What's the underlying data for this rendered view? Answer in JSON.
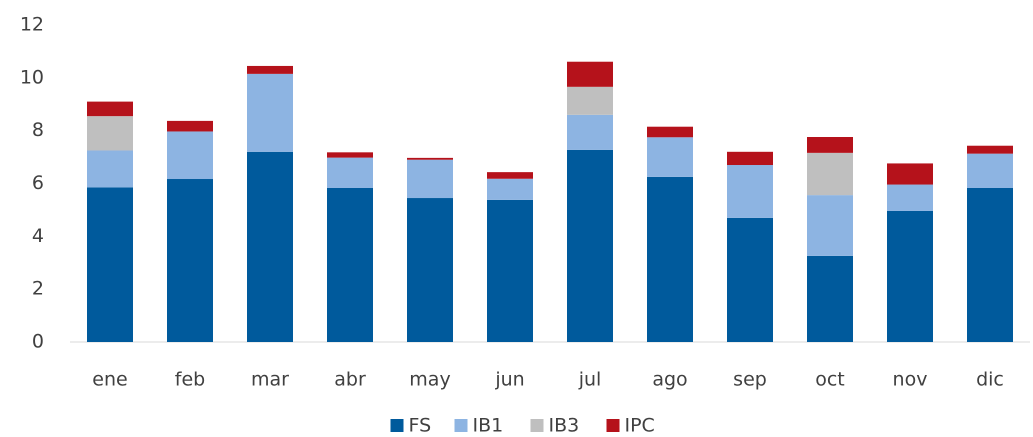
{
  "chart_data": {
    "type": "stacked-bar",
    "categories": [
      "ene",
      "feb",
      "mar",
      "abr",
      "may",
      "jun",
      "jul",
      "ago",
      "sep",
      "oct",
      "nov",
      "dic"
    ],
    "series": [
      {
        "name": "FS",
        "color": "#005a9c",
        "values": [
          5.85,
          6.17,
          7.2,
          5.83,
          5.45,
          5.38,
          7.27,
          6.25,
          4.7,
          3.26,
          4.96,
          5.83
        ]
      },
      {
        "name": "IB1",
        "color": "#8db4e2",
        "values": [
          1.4,
          1.8,
          2.95,
          1.15,
          1.45,
          0.8,
          1.33,
          1.5,
          2.0,
          2.3,
          1.0,
          1.3
        ]
      },
      {
        "name": "IB3",
        "color": "#bfbfbf",
        "values": [
          1.3,
          0,
          0,
          0,
          0,
          0,
          1.06,
          0,
          0,
          1.6,
          0,
          0
        ]
      },
      {
        "name": "IPC",
        "color": "#b5121b",
        "values": [
          0.55,
          0.4,
          0.3,
          0.2,
          0.07,
          0.25,
          0.95,
          0.4,
          0.5,
          0.6,
          0.8,
          0.3
        ]
      }
    ],
    "ylim": [
      0,
      12
    ],
    "yticks": [
      0,
      2,
      4,
      6,
      8,
      10,
      12
    ],
    "grid": false,
    "legend": "bottom"
  }
}
